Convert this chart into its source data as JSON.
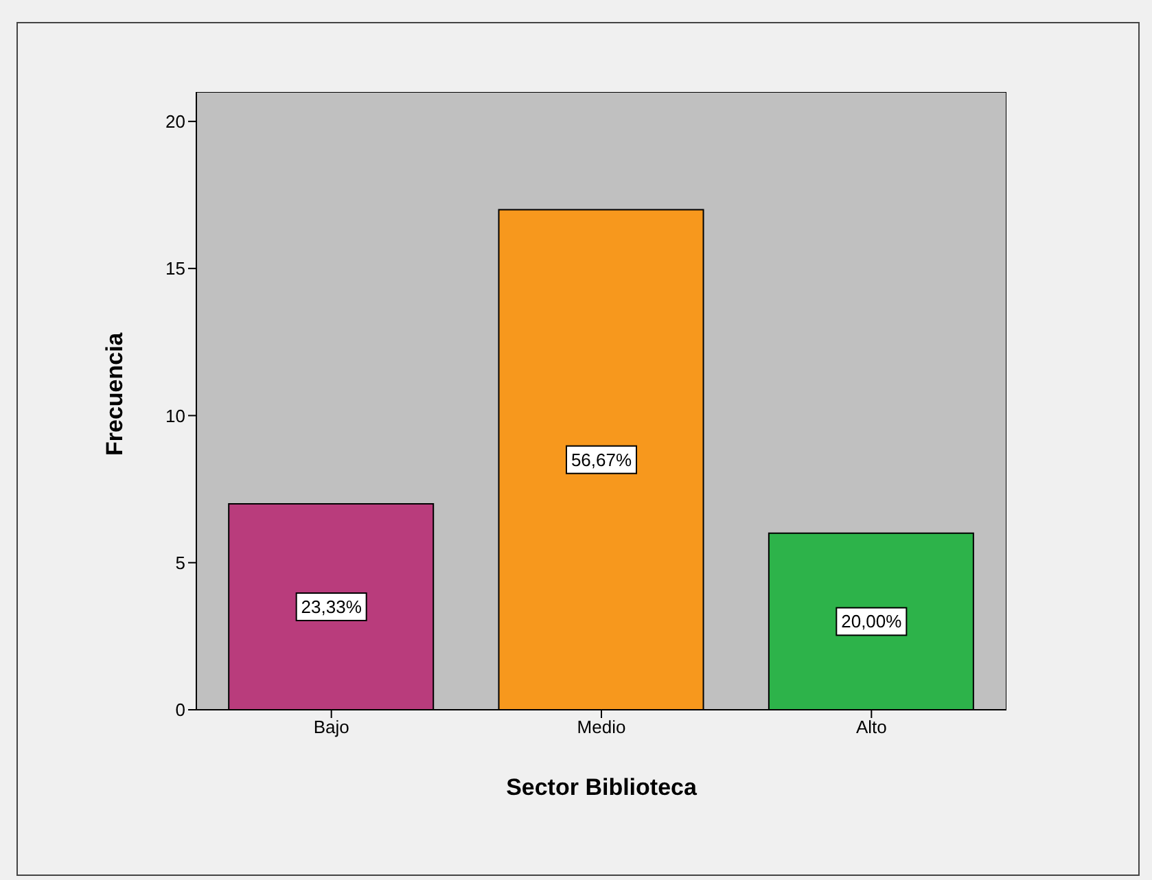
{
  "chart_data": {
    "type": "bar",
    "xlabel": "Sector Biblioteca",
    "ylabel": "Frecuencia",
    "categories": [
      "Bajo",
      "Medio",
      "Alto"
    ],
    "values": [
      7,
      17,
      6
    ],
    "colors": [
      "#b93c7c",
      "#f7981d",
      "#2db34a"
    ],
    "annotations": [
      "23,33%",
      "56,67%",
      "20,00%"
    ],
    "ylim": [
      0,
      21
    ],
    "yticks": [
      0,
      5,
      10,
      15,
      20
    ]
  }
}
